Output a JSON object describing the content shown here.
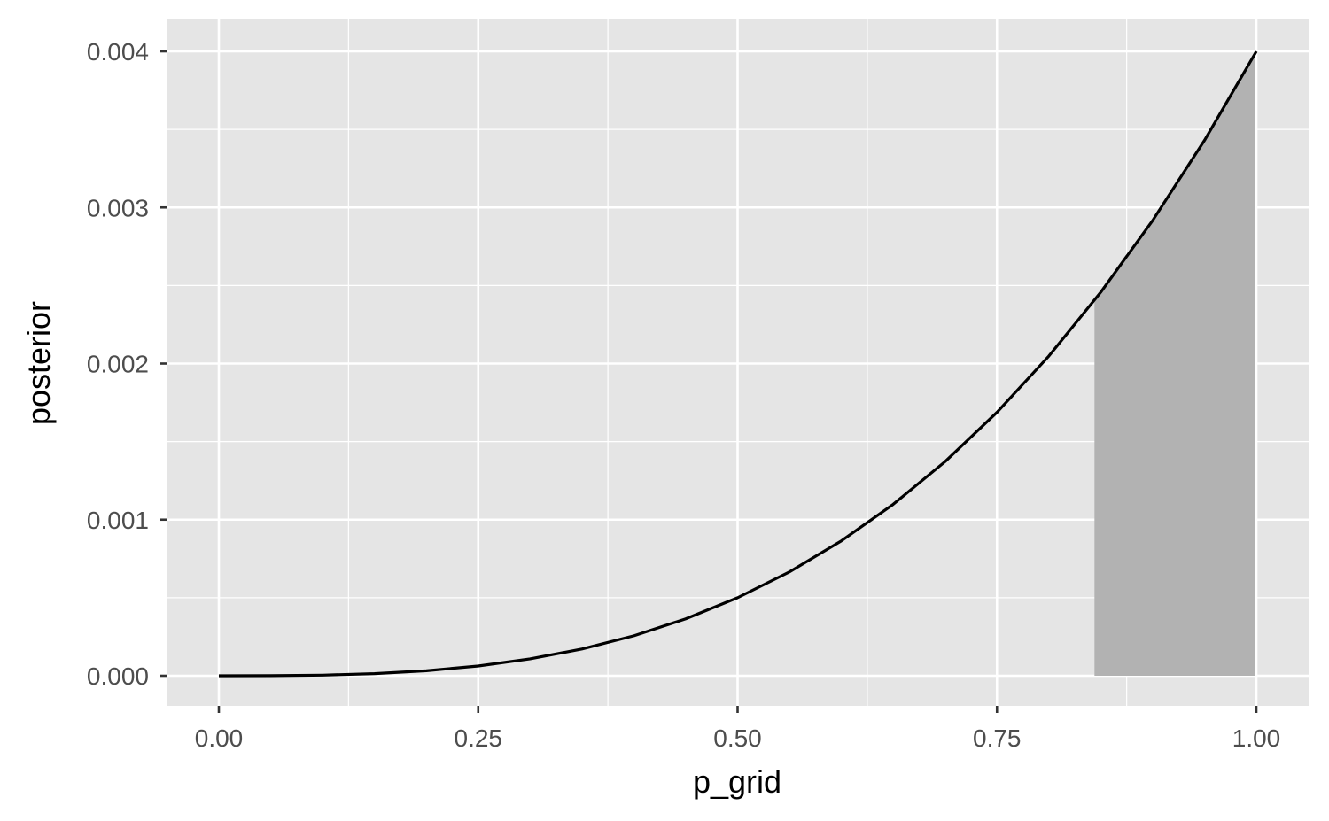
{
  "chart_data": {
    "type": "area",
    "title": "",
    "xlabel": "p_grid",
    "ylabel": "posterior",
    "xlim": [
      0,
      1
    ],
    "ylim": [
      0,
      0.004
    ],
    "x_ticks": [
      {
        "value": 0.0,
        "label": "0.00"
      },
      {
        "value": 0.25,
        "label": "0.25"
      },
      {
        "value": 0.5,
        "label": "0.50"
      },
      {
        "value": 0.75,
        "label": "0.75"
      },
      {
        "value": 1.0,
        "label": "1.00"
      }
    ],
    "y_ticks": [
      {
        "value": 0.0,
        "label": "0.000"
      },
      {
        "value": 0.001,
        "label": "0.001"
      },
      {
        "value": 0.002,
        "label": "0.002"
      },
      {
        "value": 0.003,
        "label": "0.003"
      },
      {
        "value": 0.004,
        "label": "0.004"
      }
    ],
    "grid": true,
    "series": [
      {
        "kind": "line",
        "x": [
          0.0,
          0.05,
          0.1,
          0.15,
          0.2,
          0.25,
          0.3,
          0.35,
          0.4,
          0.45,
          0.5,
          0.55,
          0.6,
          0.65,
          0.7,
          0.75,
          0.8,
          0.85,
          0.9,
          0.95,
          1.0
        ],
        "y": [
          0.0,
          5e-07,
          4e-06,
          1.35e-05,
          3.2e-05,
          6.25e-05,
          0.000108,
          0.0001715,
          0.000256,
          0.0003645,
          0.0005,
          0.0006655,
          0.000864,
          0.0010985,
          0.001372,
          0.0016875,
          0.002048,
          0.0024565,
          0.002916,
          0.0034295,
          0.004
        ]
      },
      {
        "kind": "shaded-area",
        "x_range": [
          0.844,
          0.999
        ]
      }
    ],
    "colors": {
      "panel_background": "#e5e5e5",
      "grid": "#ffffff",
      "line": "#000000",
      "shaded_area": "#b2b2b2",
      "tick_text": "#4d4d4d",
      "axis_title": "#000000"
    }
  }
}
